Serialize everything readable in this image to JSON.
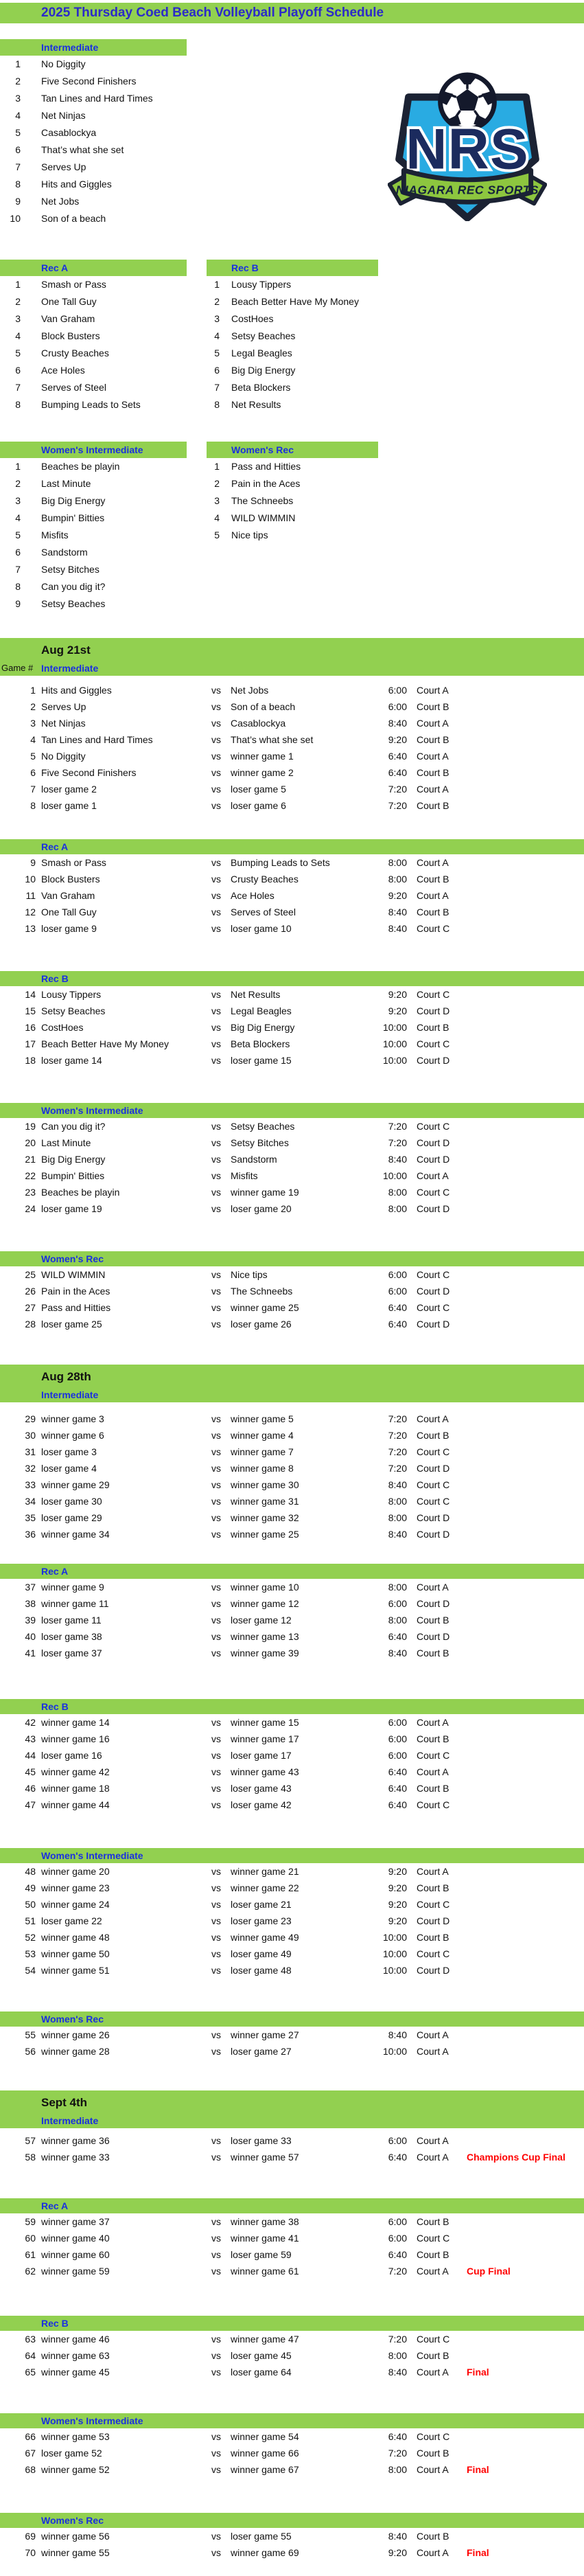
{
  "title": "2025 Thursday Coed Beach Volleyball Playoff Schedule",
  "logo": {
    "initials": "NRS",
    "banner": "NIAGARA REC SPORTS"
  },
  "colors": {
    "band_green": "#92D050",
    "title_blue": "#2B2BC8",
    "label_blue": "#1A30E0",
    "note_red": "#FF0000",
    "logo_cyan": "#29ABE2",
    "logo_navy": "#1B2B5E",
    "logo_green": "#8DC63F"
  },
  "game_number_label": "Game #",
  "vs_label": "vs",
  "rosters": [
    {
      "division": "Intermediate",
      "teams": [
        "No Diggity",
        "Five Second Finishers",
        "Tan Lines and Hard Times",
        "Net Ninjas",
        "Casablockya",
        "That’s what she set",
        "Serves Up",
        "Hits and Giggles",
        "Net Jobs",
        "Son of a beach"
      ]
    },
    {
      "division": "Rec A",
      "teams": [
        "Smash or Pass",
        "One Tall Guy",
        "Van Graham",
        "Block Busters",
        "Crusty Beaches",
        "Ace Holes",
        "Serves of Steel",
        "Bumping Leads to Sets"
      ]
    },
    {
      "division": "Rec B",
      "teams": [
        "Lousy Tippers",
        "Beach Better Have My Money",
        "CostHoes",
        "Setsy Beaches",
        "Legal Beagles",
        "Big Dig Energy",
        "Beta Blockers",
        "Net Results"
      ]
    },
    {
      "division": "Women's Intermediate",
      "teams": [
        "Beaches be playin",
        "Last Minute",
        "Big Dig Energy",
        "Bumpin' Bitties",
        "Misfits",
        "Sandstorm",
        "Setsy Bitches",
        "Can you dig it?",
        "Setsy Beaches"
      ]
    },
    {
      "division": "Women's Rec",
      "teams": [
        "Pass and Hitties",
        "Pain in the Aces",
        "The Schneebs",
        "WILD WIMMIN",
        "Nice tips"
      ]
    }
  ],
  "days": [
    {
      "date": "Aug 21st",
      "game_label": "Game #",
      "sections": [
        {
          "division": "Intermediate",
          "games": [
            {
              "num": 1,
              "team1": "Hits and Giggles",
              "team2": "Net Jobs",
              "time": "6:00",
              "court": "Court A",
              "note": ""
            },
            {
              "num": 2,
              "team1": "Serves Up",
              "team2": "Son of a beach",
              "time": "6:00",
              "court": "Court B",
              "note": ""
            },
            {
              "num": 3,
              "team1": "Net Ninjas",
              "team2": "Casablockya",
              "time": "8:40",
              "court": "Court A",
              "note": ""
            },
            {
              "num": 4,
              "team1": "Tan Lines and Hard Times",
              "team2": "That’s what she set",
              "time": "9:20",
              "court": "Court B",
              "note": ""
            },
            {
              "num": 5,
              "team1": "No Diggity",
              "team2": "winner game 1",
              "time": "6:40",
              "court": "Court A",
              "note": ""
            },
            {
              "num": 6,
              "team1": "Five Second Finishers",
              "team2": "winner game 2",
              "time": "6:40",
              "court": "Court B",
              "note": ""
            },
            {
              "num": 7,
              "team1": "loser game 2",
              "team2": "loser game 5",
              "time": "7:20",
              "court": "Court A",
              "note": ""
            },
            {
              "num": 8,
              "team1": "loser game 1",
              "team2": "loser game 6",
              "time": "7:20",
              "court": "Court B",
              "note": ""
            }
          ]
        },
        {
          "division": "Rec A",
          "games": [
            {
              "num": 9,
              "team1": "Smash or Pass",
              "team2": "Bumping Leads to Sets",
              "time": "8:00",
              "court": "Court A",
              "note": ""
            },
            {
              "num": 10,
              "team1": "Block Busters",
              "team2": "Crusty Beaches",
              "time": "8:00",
              "court": "Court B",
              "note": ""
            },
            {
              "num": 11,
              "team1": "Van Graham",
              "team2": "Ace Holes",
              "time": "9:20",
              "court": "Court A",
              "note": ""
            },
            {
              "num": 12,
              "team1": "One Tall Guy",
              "team2": "Serves of Steel",
              "time": "8:40",
              "court": "Court B",
              "note": ""
            },
            {
              "num": 13,
              "team1": "loser game 9",
              "team2": "loser game 10",
              "time": "8:40",
              "court": "Court C",
              "note": ""
            }
          ]
        },
        {
          "division": "Rec B",
          "games": [
            {
              "num": 14,
              "team1": "Lousy Tippers",
              "team2": "Net Results",
              "time": "9:20",
              "court": "Court C",
              "note": ""
            },
            {
              "num": 15,
              "team1": "Setsy Beaches",
              "team2": "Legal Beagles",
              "time": "9:20",
              "court": "Court D",
              "note": ""
            },
            {
              "num": 16,
              "team1": "CostHoes",
              "team2": "Big Dig Energy",
              "time": "10:00",
              "court": "Court B",
              "note": ""
            },
            {
              "num": 17,
              "team1": "Beach Better Have My Money",
              "team2": "Beta Blockers",
              "time": "10:00",
              "court": "Court C",
              "note": ""
            },
            {
              "num": 18,
              "team1": "loser game 14",
              "team2": "loser game 15",
              "time": "10:00",
              "court": "Court D",
              "note": ""
            }
          ]
        },
        {
          "division": "Women's Intermediate",
          "games": [
            {
              "num": 19,
              "team1": "Can you dig it?",
              "team2": "Setsy Beaches",
              "time": "7:20",
              "court": "Court C",
              "note": ""
            },
            {
              "num": 20,
              "team1": "Last Minute",
              "team2": "Setsy Bitches",
              "time": "7:20",
              "court": "Court D",
              "note": ""
            },
            {
              "num": 21,
              "team1": "Big Dig Energy",
              "team2": "Sandstorm",
              "time": "8:40",
              "court": "Court D",
              "note": ""
            },
            {
              "num": 22,
              "team1": "Bumpin' Bitties",
              "team2": "Misfits",
              "time": "10:00",
              "court": "Court A",
              "note": ""
            },
            {
              "num": 23,
              "team1": "Beaches be playin",
              "team2": "winner game 19",
              "time": "8:00",
              "court": "Court C",
              "note": ""
            },
            {
              "num": 24,
              "team1": "loser game 19",
              "team2": "loser game 20",
              "time": "8:00",
              "court": "Court D",
              "note": ""
            }
          ]
        },
        {
          "division": "Women's Rec",
          "games": [
            {
              "num": 25,
              "team1": "WILD WIMMIN",
              "team2": "Nice tips",
              "time": "6:00",
              "court": "Court C",
              "note": ""
            },
            {
              "num": 26,
              "team1": "Pain in the Aces",
              "team2": "The Schneebs",
              "time": "6:00",
              "court": "Court D",
              "note": ""
            },
            {
              "num": 27,
              "team1": "Pass and Hitties",
              "team2": "winner game 25",
              "time": "6:40",
              "court": "Court C",
              "note": ""
            },
            {
              "num": 28,
              "team1": "loser game 25",
              "team2": "loser game 26",
              "time": "6:40",
              "court": "Court D",
              "note": ""
            }
          ]
        }
      ]
    },
    {
      "date": "Aug 28th",
      "game_label": "",
      "sections": [
        {
          "division": "Intermediate",
          "games": [
            {
              "num": 29,
              "team1": "winner game 3",
              "team2": "winner game 5",
              "time": "7:20",
              "court": "Court A",
              "note": ""
            },
            {
              "num": 30,
              "team1": "winner game 6",
              "team2": "winner game 4",
              "time": "7:20",
              "court": "Court B",
              "note": ""
            },
            {
              "num": 31,
              "team1": "loser game 3",
              "team2": "winner game 7",
              "time": "7:20",
              "court": "Court C",
              "note": ""
            },
            {
              "num": 32,
              "team1": "loser game 4",
              "team2": "winner game 8",
              "time": "7:20",
              "court": "Court D",
              "note": ""
            },
            {
              "num": 33,
              "team1": "winner game 29",
              "team2": "winner game 30",
              "time": "8:40",
              "court": "Court C",
              "note": ""
            },
            {
              "num": 34,
              "team1": "loser game 30",
              "team2": "winner game 31",
              "time": "8:00",
              "court": "Court C",
              "note": ""
            },
            {
              "num": 35,
              "team1": "loser game 29",
              "team2": "winner game 32",
              "time": "8:00",
              "court": "Court D",
              "note": ""
            },
            {
              "num": 36,
              "team1": "winner game 34",
              "team2": "winner game 25",
              "time": "8:40",
              "court": "Court D",
              "note": ""
            }
          ]
        },
        {
          "division": "Rec A",
          "games": [
            {
              "num": 37,
              "team1": "winner game 9",
              "team2": "winner game 10",
              "time": "8:00",
              "court": "Court A",
              "note": ""
            },
            {
              "num": 38,
              "team1": "winner game 11",
              "team2": "winner game 12",
              "time": "6:00",
              "court": "Court D",
              "note": ""
            },
            {
              "num": 39,
              "team1": "loser game 11",
              "team2": "loser game 12",
              "time": "8:00",
              "court": "Court B",
              "note": ""
            },
            {
              "num": 40,
              "team1": "loser game 38",
              "team2": "winner game 13",
              "time": "6:40",
              "court": "Court D",
              "note": ""
            },
            {
              "num": 41,
              "team1": "loser game 37",
              "team2": "winner game 39",
              "time": "8:40",
              "court": "Court B",
              "note": ""
            }
          ]
        },
        {
          "division": "Rec B",
          "games": [
            {
              "num": 42,
              "team1": "winner game 14",
              "team2": "winner game 15",
              "time": "6:00",
              "court": "Court A",
              "note": ""
            },
            {
              "num": 43,
              "team1": "winner game 16",
              "team2": "winner game 17",
              "time": "6:00",
              "court": "Court B",
              "note": ""
            },
            {
              "num": 44,
              "team1": "loser game 16",
              "team2": "loser game 17",
              "time": "6:00",
              "court": "Court C",
              "note": ""
            },
            {
              "num": 45,
              "team1": "winner game 42",
              "team2": "winner game 43",
              "time": "6:40",
              "court": "Court A",
              "note": ""
            },
            {
              "num": 46,
              "team1": "winner game 18",
              "team2": "loser game 43",
              "time": "6:40",
              "court": "Court B",
              "note": ""
            },
            {
              "num": 47,
              "team1": "winner game 44",
              "team2": "loser game 42",
              "time": "6:40",
              "court": "Court C",
              "note": ""
            }
          ]
        },
        {
          "division": "Women's Intermediate",
          "games": [
            {
              "num": 48,
              "team1": "winner game 20",
              "team2": "winner game 21",
              "time": "9:20",
              "court": "Court A",
              "note": ""
            },
            {
              "num": 49,
              "team1": "winner game 23",
              "team2": "winner game 22",
              "time": "9:20",
              "court": "Court B",
              "note": ""
            },
            {
              "num": 50,
              "team1": "winner game 24",
              "team2": "loser game 21",
              "time": "9:20",
              "court": "Court C",
              "note": ""
            },
            {
              "num": 51,
              "team1": "loser game 22",
              "team2": "loser game 23",
              "time": "9:20",
              "court": "Court D",
              "note": ""
            },
            {
              "num": 52,
              "team1": "winner game 48",
              "team2": "winner game 49",
              "time": "10:00",
              "court": "Court B",
              "note": ""
            },
            {
              "num": 53,
              "team1": "winner game 50",
              "team2": "loser game 49",
              "time": "10:00",
              "court": "Court C",
              "note": ""
            },
            {
              "num": 54,
              "team1": "winner game 51",
              "team2": "loser game 48",
              "time": "10:00",
              "court": "Court D",
              "note": ""
            }
          ]
        },
        {
          "division": "Women's Rec",
          "games": [
            {
              "num": 55,
              "team1": "winner game 26",
              "team2": "winner game 27",
              "time": "8:40",
              "court": "Court A",
              "note": ""
            },
            {
              "num": 56,
              "team1": "winner game 28",
              "team2": "loser game 27",
              "time": "10:00",
              "court": "Court A",
              "note": ""
            }
          ]
        }
      ]
    },
    {
      "date": "Sept 4th",
      "game_label": "",
      "sections": [
        {
          "division": "Intermediate",
          "games": [
            {
              "num": 57,
              "team1": "winner game 36",
              "team2": "loser game 33",
              "time": "6:00",
              "court": "Court A",
              "note": ""
            },
            {
              "num": 58,
              "team1": "winner game 33",
              "team2": "winner game 57",
              "time": "6:40",
              "court": "Court A",
              "note": "Champions Cup Final"
            }
          ]
        },
        {
          "division": "Rec A",
          "games": [
            {
              "num": 59,
              "team1": "winner game 37",
              "team2": "winner game 38",
              "time": "6:00",
              "court": "Court B",
              "note": ""
            },
            {
              "num": 60,
              "team1": "winner game 40",
              "team2": "winner game 41",
              "time": "6:00",
              "court": "Court C",
              "note": ""
            },
            {
              "num": 61,
              "team1": "winner game 60",
              "team2": "loser game 59",
              "time": "6:40",
              "court": "Court B",
              "note": ""
            },
            {
              "num": 62,
              "team1": "winner game 59",
              "team2": "winner game 61",
              "time": "7:20",
              "court": "Court A",
              "note": "Cup Final"
            }
          ]
        },
        {
          "division": "Rec B",
          "games": [
            {
              "num": 63,
              "team1": "winner game 46",
              "team2": "winner game 47",
              "time": "7:20",
              "court": "Court C",
              "note": ""
            },
            {
              "num": 64,
              "team1": "winner game 63",
              "team2": "loser game 45",
              "time": "8:00",
              "court": "Court B",
              "note": ""
            },
            {
              "num": 65,
              "team1": "winner game 45",
              "team2": "loser game 64",
              "time": "8:40",
              "court": "Court A",
              "note": "Final"
            }
          ]
        },
        {
          "division": "Women's Intermediate",
          "games": [
            {
              "num": 66,
              "team1": "winner game 53",
              "team2": "winner game 54",
              "time": "6:40",
              "court": "Court C",
              "note": ""
            },
            {
              "num": 67,
              "team1": "loser game 52",
              "team2": "winner game 66",
              "time": "7:20",
              "court": "Court B",
              "note": ""
            },
            {
              "num": 68,
              "team1": "winner game 52",
              "team2": "winner game 67",
              "time": "8:00",
              "court": "Court A",
              "note": "Final"
            }
          ]
        },
        {
          "division": "Women's Rec",
          "games": [
            {
              "num": 69,
              "team1": "winner game 56",
              "team2": "loser game 55",
              "time": "8:40",
              "court": "Court B",
              "note": ""
            },
            {
              "num": 70,
              "team1": "winner game 55",
              "team2": "winner game 69",
              "time": "9:20",
              "court": "Court A",
              "note": "Final"
            }
          ]
        }
      ]
    }
  ]
}
